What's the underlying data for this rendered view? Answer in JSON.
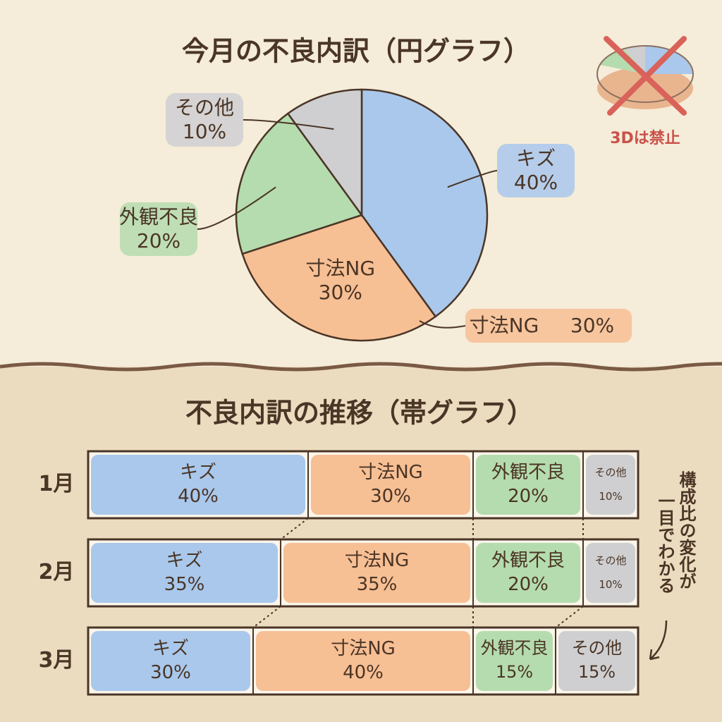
{
  "chart_data": [
    {
      "type": "pie",
      "title": "今月の不良内訳（円グラフ）",
      "categories": [
        "キズ",
        "寸法NG",
        "外観不良",
        "その他"
      ],
      "values": [
        40,
        30,
        20,
        10
      ],
      "value_labels": [
        "40%",
        "30%",
        "20%",
        "10%"
      ],
      "colors": [
        "#a9c8ec",
        "#f7bf94",
        "#b5dcae",
        "#cfcfd1"
      ],
      "annotation": "3Dは禁止"
    },
    {
      "type": "stacked-bar",
      "title": "不良内訳の推移（帯グラフ）",
      "categories": [
        "1月",
        "2月",
        "3月"
      ],
      "series": [
        {
          "name": "キズ",
          "color": "#a9c8ec",
          "values": [
            40,
            35,
            30
          ],
          "value_labels": [
            "40%",
            "35%",
            "30%"
          ]
        },
        {
          "name": "寸法NG",
          "color": "#f7bf94",
          "values": [
            30,
            35,
            40
          ],
          "value_labels": [
            "30%",
            "35%",
            "40%"
          ]
        },
        {
          "name": "外観不良",
          "color": "#b5dcae",
          "values": [
            20,
            20,
            15
          ],
          "value_labels": [
            "20%",
            "20%",
            "15%"
          ]
        },
        {
          "name": "その他",
          "color": "#cfcfd1",
          "values": [
            10,
            10,
            15
          ],
          "value_labels": [
            "10%",
            "10%",
            "15%"
          ]
        }
      ],
      "annotation": [
        "構成比の変化が",
        "一目でわかる"
      ]
    }
  ]
}
